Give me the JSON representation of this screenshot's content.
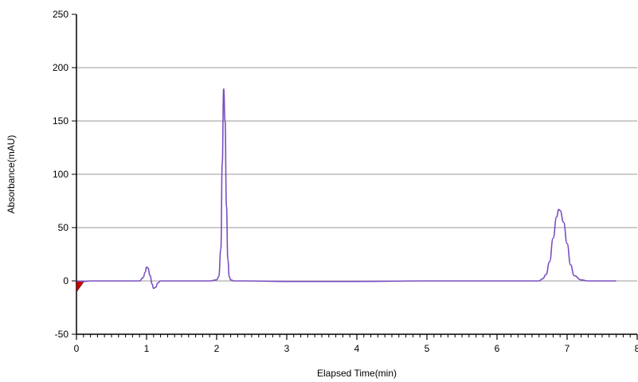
{
  "chart_data": {
    "type": "line",
    "title": "",
    "xlabel": "Elapsed Time(min)",
    "ylabel": "Absorbance(mAU)",
    "xlim": [
      0,
      8
    ],
    "ylim": [
      -50,
      250
    ],
    "x_ticks": [
      0,
      1,
      2,
      3,
      4,
      5,
      6,
      7,
      8
    ],
    "y_ticks": [
      -50,
      0,
      50,
      100,
      150,
      200,
      250
    ],
    "x_tick_labels": [
      "0",
      "1",
      "2",
      "3",
      "4",
      "5",
      "6",
      "7",
      "8"
    ],
    "y_tick_labels": [
      "-50",
      "0",
      "50",
      "100",
      "150",
      "200",
      "250"
    ],
    "grid": "horizontal",
    "colors": {
      "trace": "#7a4fc0",
      "grid": "#9a9a9a",
      "axis": "#000000",
      "marker": "#cc0000"
    },
    "series": [
      {
        "x": [
          0.0,
          0.1,
          0.2,
          0.5,
          0.9,
          0.95,
          0.98,
          1.0,
          1.02,
          1.05,
          1.08,
          1.1,
          1.13,
          1.16,
          1.2,
          1.3,
          1.6,
          1.9,
          2.0,
          2.03,
          2.06,
          2.08,
          2.1,
          2.12,
          2.14,
          2.16,
          2.18,
          2.2,
          2.25,
          2.4,
          3.0,
          4.0,
          5.0,
          6.0,
          6.5,
          6.6,
          6.65,
          6.7,
          6.75,
          6.8,
          6.85,
          6.88,
          6.9,
          6.95,
          7.0,
          7.05,
          7.1,
          7.2,
          7.3,
          7.5,
          7.7
        ],
        "y": [
          0,
          -0.5,
          0,
          0,
          0,
          3,
          8,
          13,
          12,
          5,
          -3,
          -7,
          -6,
          -2,
          0,
          0,
          0,
          0,
          1,
          4,
          30,
          110,
          180,
          150,
          70,
          20,
          4,
          1,
          0,
          0,
          -0.5,
          -0.5,
          0,
          0,
          0,
          0,
          2,
          6,
          18,
          40,
          60,
          67,
          66,
          55,
          35,
          15,
          5,
          1,
          0,
          0,
          0
        ]
      }
    ],
    "annotations": [
      {
        "type": "baseline-marker",
        "x": 0.0,
        "y": 0
      }
    ]
  }
}
